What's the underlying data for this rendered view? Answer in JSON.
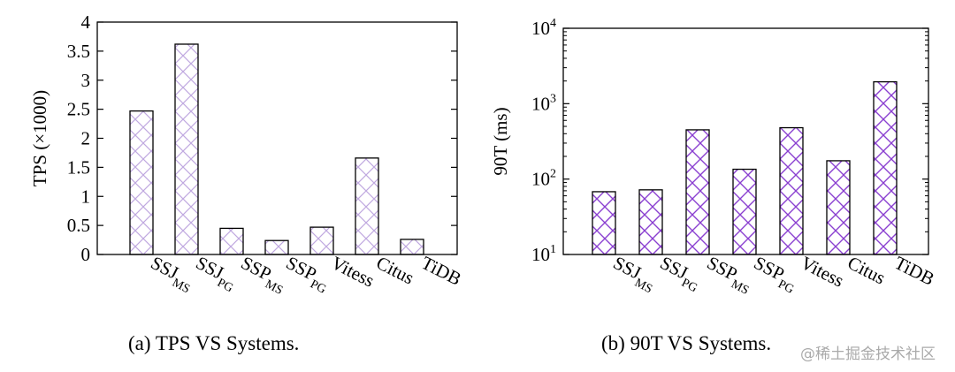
{
  "chart_data": [
    {
      "type": "bar",
      "caption": "(a)  TPS VS Systems.",
      "ylabel": "TPS (×1000)",
      "ylim": [
        0,
        4
      ],
      "yscale": "linear",
      "yticks": [
        "0",
        "0.5",
        "1",
        "1.5",
        "2",
        "2.5",
        "3",
        "3.5",
        "4"
      ],
      "categories": [
        {
          "base": "SSJ",
          "sub": "MS"
        },
        {
          "base": "SSJ",
          "sub": "PG"
        },
        {
          "base": "SSP",
          "sub": "MS"
        },
        {
          "base": "SSP",
          "sub": "PG"
        },
        {
          "base": "Vitess",
          "sub": ""
        },
        {
          "base": "Citus",
          "sub": ""
        },
        {
          "base": "TiDB",
          "sub": ""
        }
      ],
      "values": [
        2.47,
        3.62,
        0.45,
        0.24,
        0.47,
        1.66,
        0.26
      ],
      "hatch": "crosshatch",
      "hatch_color": "#bfa8e0"
    },
    {
      "type": "bar",
      "caption": "(b)  90T VS Systems.",
      "ylabel": "90T (ms)",
      "ylim": [
        10,
        10000
      ],
      "yscale": "log",
      "yticks": [
        {
          "base": "10",
          "exp": "1"
        },
        {
          "base": "10",
          "exp": "2"
        },
        {
          "base": "10",
          "exp": "3"
        },
        {
          "base": "10",
          "exp": "4"
        }
      ],
      "categories": [
        {
          "base": "SSJ",
          "sub": "MS"
        },
        {
          "base": "SSJ",
          "sub": "PG"
        },
        {
          "base": "SSP",
          "sub": "MS"
        },
        {
          "base": "SSP",
          "sub": "PG"
        },
        {
          "base": "Vitess",
          "sub": ""
        },
        {
          "base": "Citus",
          "sub": ""
        },
        {
          "base": "TiDB",
          "sub": ""
        }
      ],
      "values": [
        68,
        72,
        450,
        135,
        480,
        175,
        1950
      ],
      "hatch": "crosshatch",
      "hatch_color": "#8a3fd0"
    }
  ],
  "watermark": "@稀土掘金技术社区"
}
